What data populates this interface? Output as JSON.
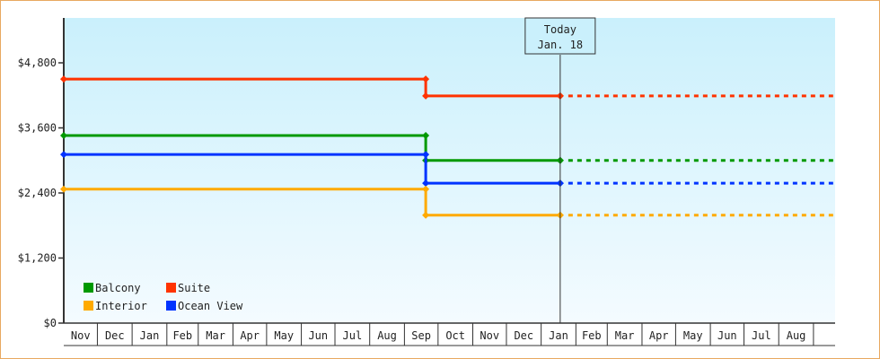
{
  "chart_data": {
    "type": "line",
    "step": true,
    "y_ticks": [
      "$0",
      "$1,200",
      "$2,400",
      "$3,600",
      "$4,800"
    ],
    "y_tick_values": [
      0,
      1200,
      2400,
      3600,
      4800
    ],
    "ylim": [
      0,
      5750
    ],
    "x_tick_labels": [
      "Nov",
      "Dec",
      "Jan",
      "Feb",
      "Mar",
      "Apr",
      "May",
      "Jun",
      "Jul",
      "Aug",
      "Sep",
      "Oct",
      "Nov",
      "Dec",
      "Jan",
      "Feb",
      "Mar",
      "Apr",
      "May",
      "Jun",
      "Jul",
      "Aug"
    ],
    "today": {
      "title": "Today",
      "date": "Jan. 18"
    },
    "x_dates": [
      "Nov 1",
      "Sep 20",
      "Jan 18"
    ],
    "projection_end": "Sep 20",
    "series": [
      {
        "name": "Suite",
        "color": "#ff3300",
        "values": [
          4500,
          4190,
          4190
        ]
      },
      {
        "name": "Balcony",
        "color": "#009900",
        "values": [
          3460,
          3000,
          3000
        ]
      },
      {
        "name": "Ocean View",
        "color": "#0033ff",
        "values": [
          3110,
          2580,
          2580
        ]
      },
      {
        "name": "Interior",
        "color": "#ffaa00",
        "values": [
          2470,
          1990,
          1990
        ]
      }
    ],
    "legend": {
      "placement": "bottom-left",
      "order": [
        "Balcony",
        "Suite",
        "Interior",
        "Ocean View"
      ]
    },
    "background": [
      "#caf0fc",
      "#f4fbff"
    ],
    "grid": false
  }
}
